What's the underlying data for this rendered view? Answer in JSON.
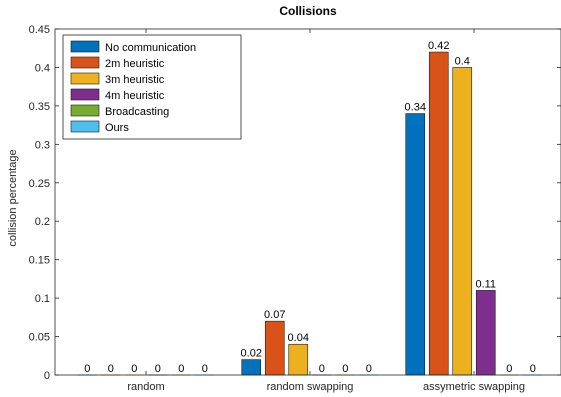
{
  "chart_data": {
    "type": "bar",
    "title": "Collisions",
    "xlabel": "",
    "ylabel": "collision percentage",
    "ylim": [
      0,
      0.45
    ],
    "yticks": [
      0,
      0.05,
      0.1,
      0.15,
      0.2,
      0.25,
      0.3,
      0.35,
      0.4,
      0.45
    ],
    "ytick_labels": [
      "0",
      "0.05",
      "0.1",
      "0.15",
      "0.2",
      "0.25",
      "0.3",
      "0.35",
      "0.4",
      "0.45"
    ],
    "categories": [
      "random",
      "random swapping",
      "assymetric swapping"
    ],
    "series": [
      {
        "name": "No communication",
        "color": "#0072BD",
        "values": [
          0,
          0.02,
          0.34
        ],
        "labels": [
          "0",
          "0.02",
          "0.34"
        ]
      },
      {
        "name": "2m heuristic",
        "color": "#D95319",
        "values": [
          0,
          0.07,
          0.42
        ],
        "labels": [
          "0",
          "0.07",
          "0.42"
        ]
      },
      {
        "name": "3m heuristic",
        "color": "#EDB120",
        "values": [
          0,
          0.04,
          0.4
        ],
        "labels": [
          "0",
          "0.04",
          "0.4"
        ]
      },
      {
        "name": "4m heuristic",
        "color": "#7E2F8E",
        "values": [
          0,
          0,
          0.11
        ],
        "labels": [
          "0",
          "0",
          "0.11"
        ]
      },
      {
        "name": "Broadcasting",
        "color": "#77AC30",
        "values": [
          0,
          0,
          0
        ],
        "labels": [
          "0",
          "0",
          "0"
        ]
      },
      {
        "name": "Ours",
        "color": "#4DBEEE",
        "values": [
          0,
          0,
          0
        ],
        "labels": [
          "0",
          "0",
          "0"
        ]
      }
    ],
    "legend_position": "top-left",
    "grid": false
  }
}
